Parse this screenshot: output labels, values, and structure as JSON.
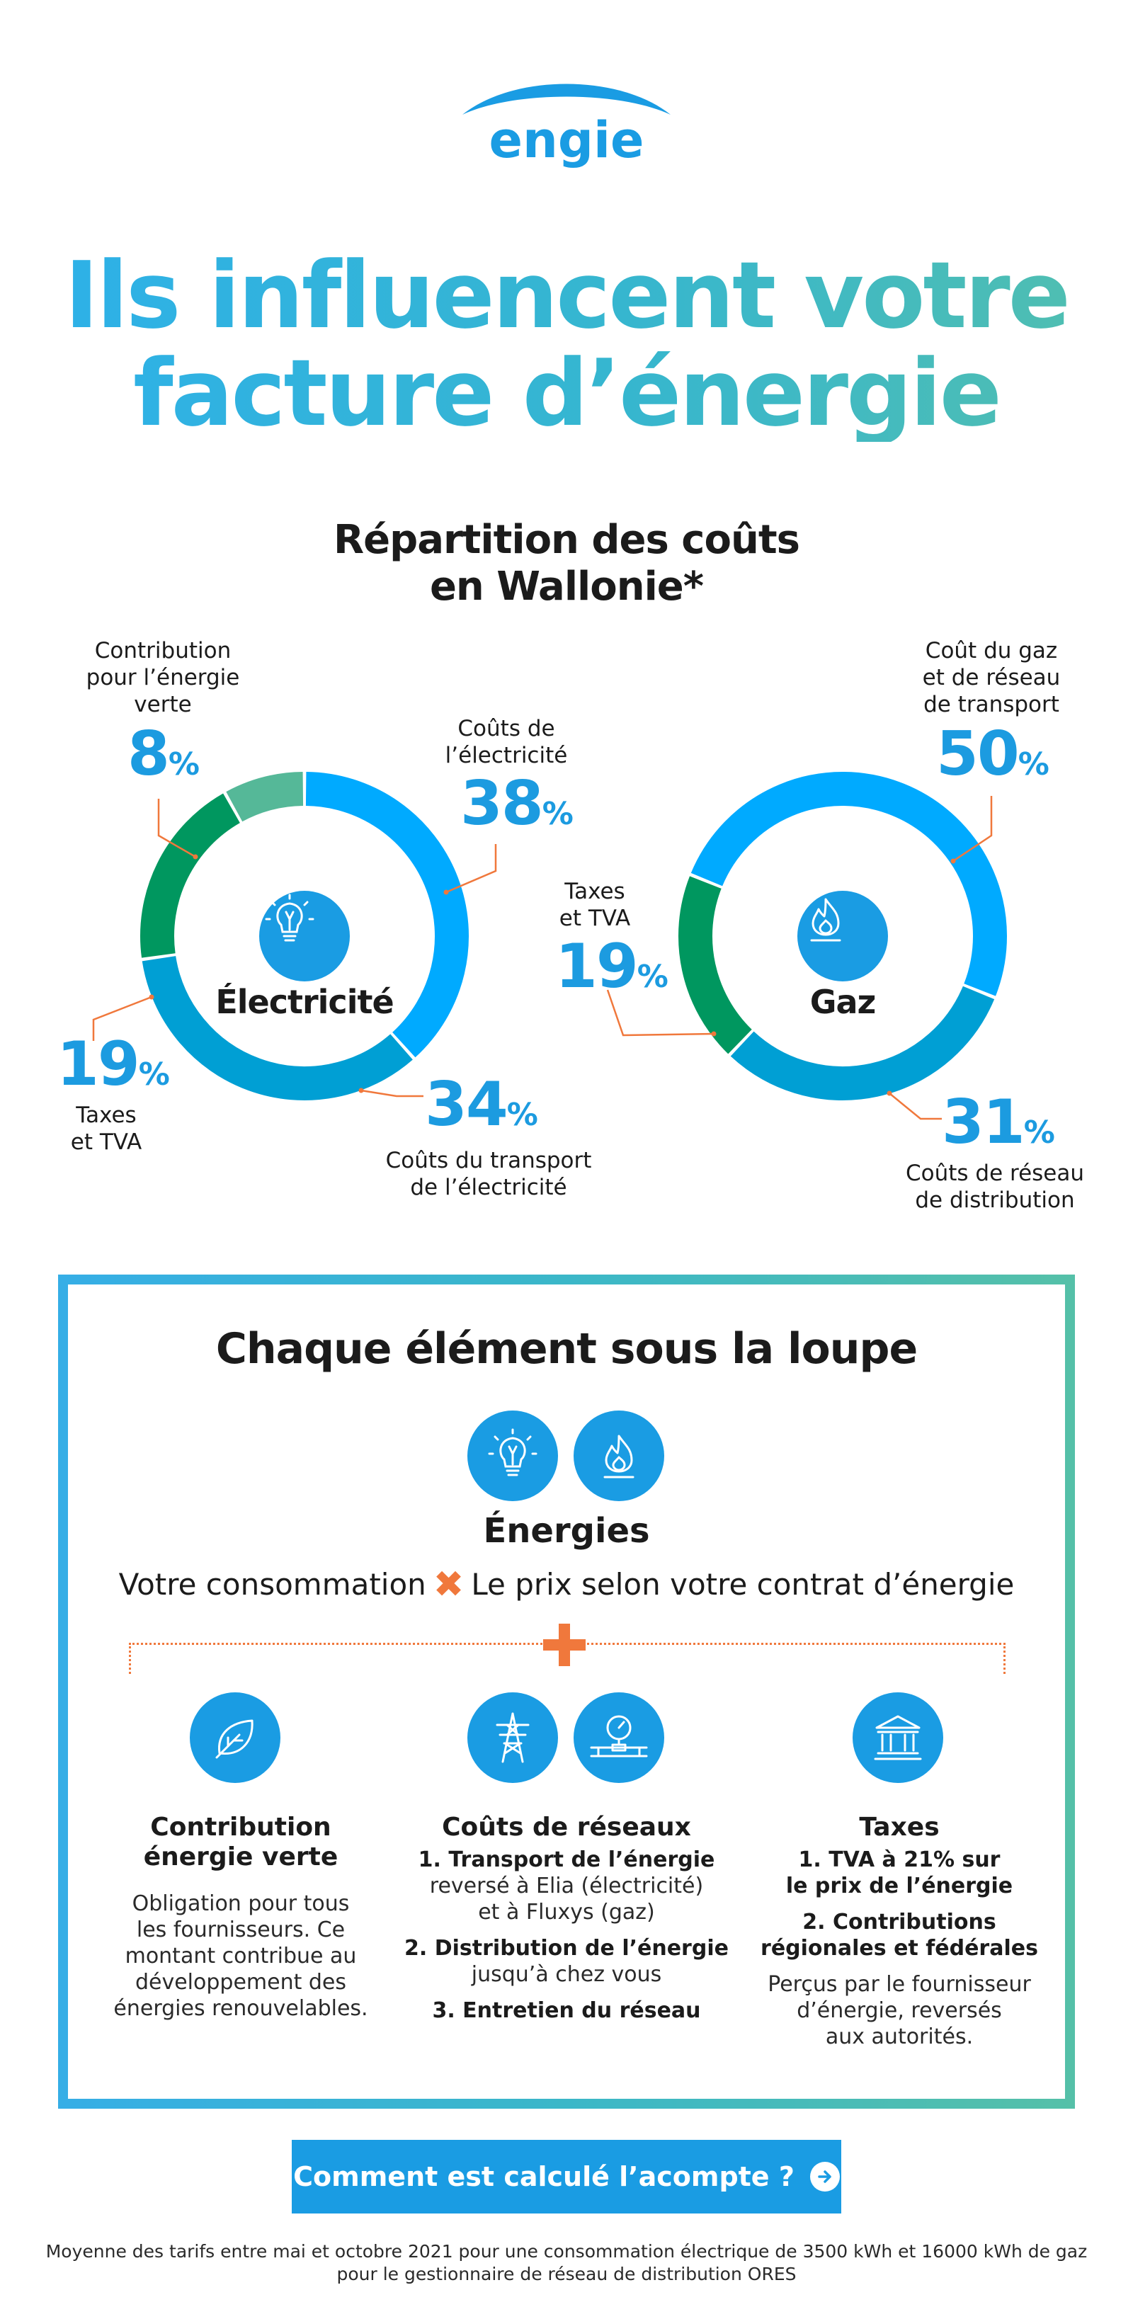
{
  "brand": {
    "name": "ENGIE",
    "logo_text": "engie",
    "colors": {
      "blue": "#1a9ce3",
      "light_blue": "#00aaff",
      "mid_blue": "#009fd4",
      "green": "#00975f",
      "light_green": "#55b898",
      "orange": "#f0783c"
    }
  },
  "headline": {
    "line1": "Ils influencent votre",
    "line2": "facture d’énergie"
  },
  "subhead": {
    "line1": "Répartition des coûts",
    "line2": "en Wallonie*"
  },
  "electricite": {
    "title": "Électricité",
    "icon": "lightbulb-icon",
    "segments": [
      {
        "label_lines": [
          "Contribution",
          "pour l’énergie",
          "verte"
        ],
        "value": 8
      },
      {
        "label_lines": [
          "Coûts de",
          "l’électricité"
        ],
        "value": 38
      },
      {
        "label_lines": [
          "Coûts du transport",
          "de l’électricité"
        ],
        "value": 34
      },
      {
        "label_lines": [
          "Taxes",
          "et TVA"
        ],
        "value": 19
      }
    ]
  },
  "gaz": {
    "title": "Gaz",
    "icon": "flame-icon",
    "segments": [
      {
        "label_lines": [
          "Coût du gaz",
          "et de réseau",
          "de transport"
        ],
        "value": 50
      },
      {
        "label_lines": [
          "Coûts de réseau",
          "de distribution"
        ],
        "value": 31
      },
      {
        "label_lines": [
          "Taxes",
          "et TVA"
        ],
        "value": 19
      }
    ]
  },
  "percent_sign": "%",
  "box": {
    "title": "Chaque élément sous la loupe",
    "energies": {
      "title": "Énergies",
      "formula_left": "Votre consommation",
      "formula_operator": "✖",
      "formula_right": "Le prix selon votre contrat d’énergie"
    },
    "plus_sign": "+",
    "columns": {
      "contribution": {
        "icon": "leaf-icon",
        "title_lines": [
          "Contribution",
          "énergie verte"
        ],
        "text_lines": [
          "Obligation pour tous",
          "les fournisseurs. Ce",
          "montant contribue au",
          "développement des",
          "énergies renouvelables."
        ]
      },
      "reseaux": {
        "icons": [
          "pylon-icon",
          "gas-meter-icon"
        ],
        "title": "Coûts de réseaux",
        "item1_title": "1. Transport de l’énergie",
        "item1_lines": [
          "reversé à Elia (électricité)",
          "et à Fluxys (gaz)"
        ],
        "item2_title": "2. Distribution de l’énergie",
        "item2_lines": [
          "jusqu’à chez vous"
        ],
        "item3_title": "3. Entretien du réseau"
      },
      "taxes": {
        "icon": "government-building-icon",
        "title": "Taxes",
        "item1_lines": [
          "1. TVA à 21% sur",
          "le prix de l’énergie"
        ],
        "item2_lines": [
          "2. Contributions",
          "régionales et fédérales"
        ],
        "text_lines": [
          "Perçus par le fournisseur",
          "d’énergie, reversés",
          "aux autorités."
        ]
      }
    }
  },
  "cta": {
    "label": "Comment est calculé l’acompte ?",
    "icon": "arrow-right-icon"
  },
  "footnote": {
    "line1": "Moyenne des tarifs entre mai et octobre 2021 pour une consommation électrique de 3500 kWh et 16000 kWh de gaz",
    "line2": "pour le gestionnaire de réseau de distribution ORES"
  }
}
